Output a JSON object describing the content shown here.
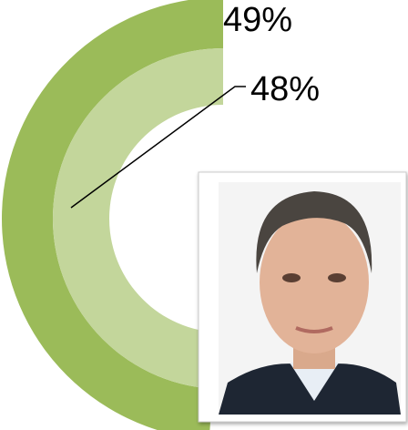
{
  "chart_data": {
    "type": "radial",
    "series": [
      {
        "values": [
          49
        ],
        "value_labels": [
          "49%"
        ],
        "color": "#9bbb59"
      },
      {
        "values": [
          48
        ],
        "value_labels": [
          "48%"
        ],
        "color": "#c3d69b"
      }
    ],
    "ylim": [
      0,
      100
    ]
  }
}
